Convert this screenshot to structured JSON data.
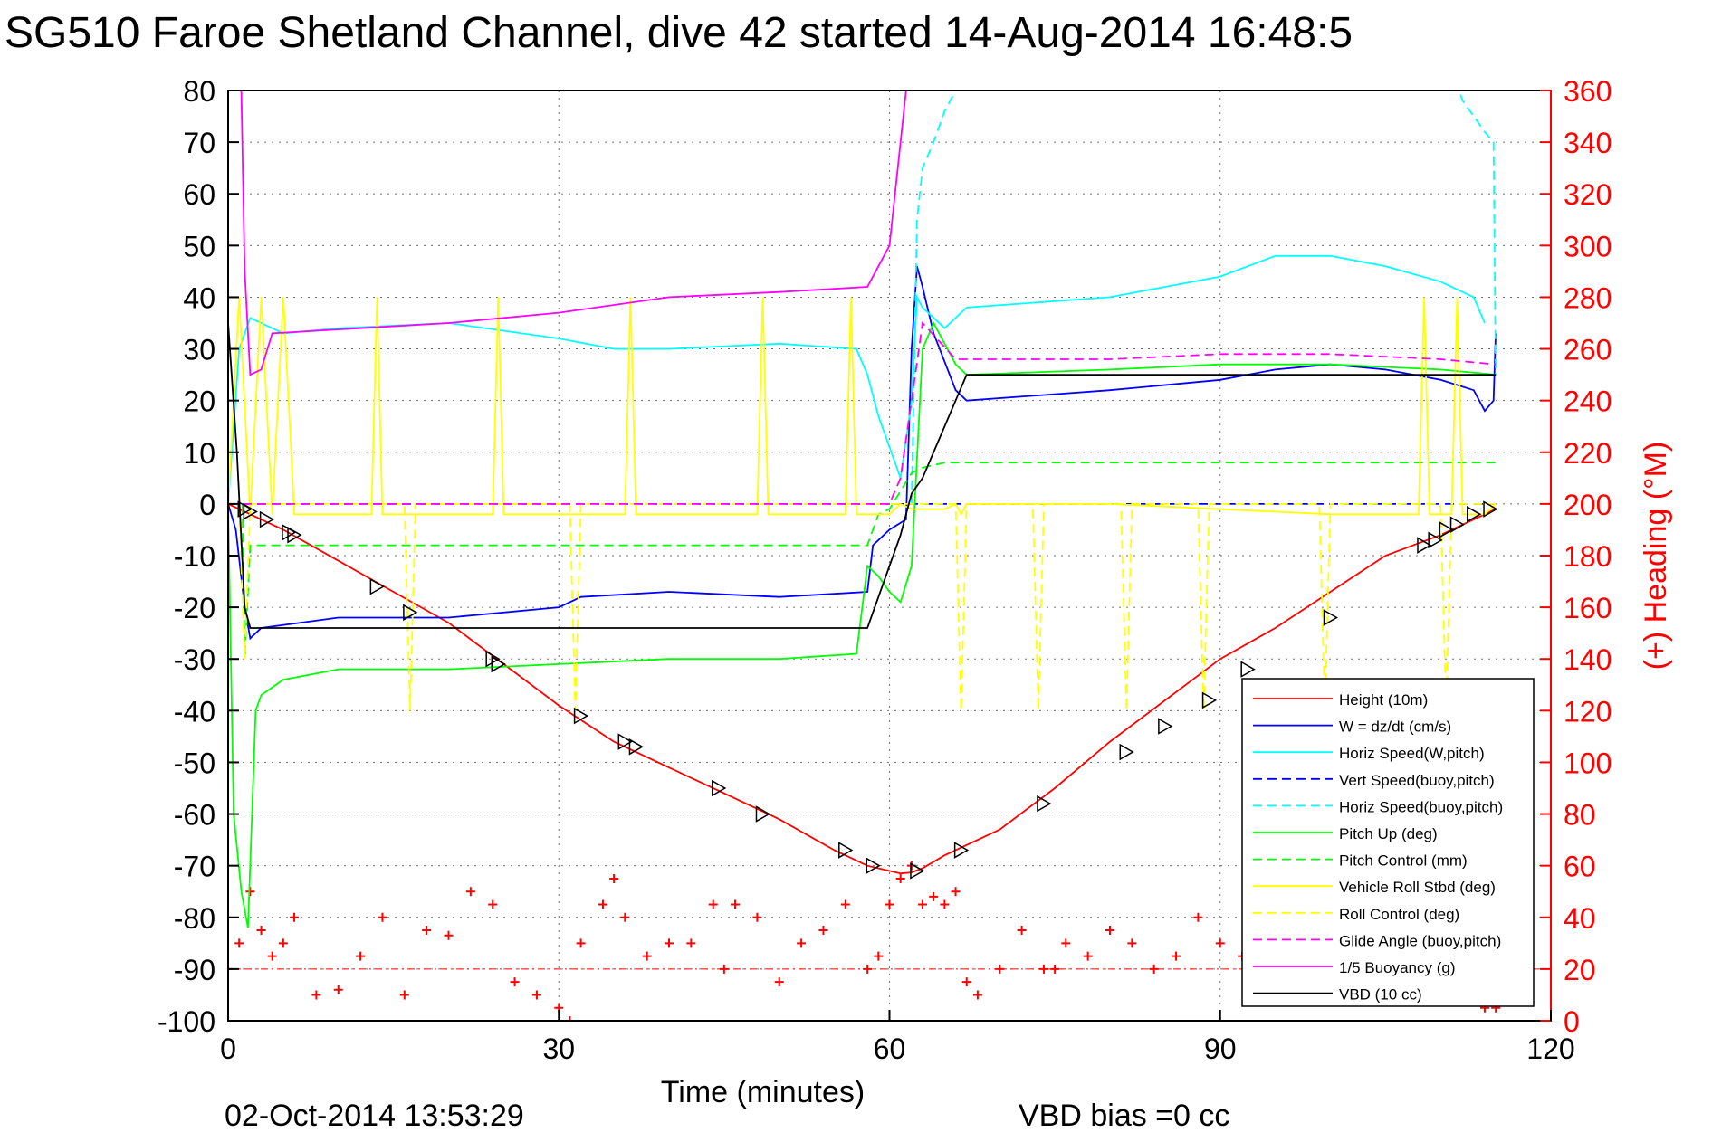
{
  "title": "SG510 Faroe Shetland Channel, dive 42 started 14-Aug-2014 16:48:5",
  "footer_date": "02-Oct-2014 13:53:29",
  "vbd_bias": "VBD bias =0 cc",
  "colors": {
    "height": "#ff0000",
    "w": "#0000ff",
    "horiz": "#00ffff",
    "vert_buoy": "#0000ff",
    "horiz_buoy": "#00ffff",
    "pitch": "#00ff00",
    "pitch_ctrl": "#00ff00",
    "roll": "#ffff00",
    "roll_ctrl": "#ffff00",
    "glide": "#ff00ff",
    "buoy": "#ff00ff",
    "vbd": "#000000",
    "heading": "#ff0000",
    "marker": "#000000"
  },
  "chart_data": {
    "type": "line",
    "xlabel": "Time (minutes)",
    "ylabel_right": "(+) Heading (°M)",
    "xlim": [
      0,
      120
    ],
    "ylim": [
      -100,
      80
    ],
    "y2lim": [
      0,
      360
    ],
    "xticks": [
      "0",
      "30",
      "60",
      "90",
      "120"
    ],
    "yticks": [
      "80",
      "70",
      "60",
      "50",
      "40",
      "30",
      "20",
      "10",
      "0",
      "-10",
      "-20",
      "-30",
      "-40",
      "-50",
      "-60",
      "-70",
      "-80",
      "-90",
      "-100"
    ],
    "y2ticks": [
      "360",
      "340",
      "320",
      "300",
      "280",
      "260",
      "240",
      "220",
      "200",
      "180",
      "160",
      "140",
      "120",
      "100",
      "80",
      "60",
      "40",
      "20",
      "0"
    ],
    "grid": true,
    "legend_position": "bottom-right",
    "legend": [
      {
        "label": "Height (10m)",
        "color": "#ff0000",
        "dash": "solid"
      },
      {
        "label": "W = dz/dt (cm/s)",
        "color": "#0000ff",
        "dash": "solid"
      },
      {
        "label": "Horiz Speed(W,pitch)",
        "color": "#00ffff",
        "dash": "solid"
      },
      {
        "label": "Vert Speed(buoy,pitch)",
        "color": "#0000ff",
        "dash": "dashed"
      },
      {
        "label": "Horiz Speed(buoy,pitch)",
        "color": "#00ffff",
        "dash": "dashed"
      },
      {
        "label": "Pitch Up (deg)",
        "color": "#00ff00",
        "dash": "solid"
      },
      {
        "label": "Pitch Control (mm)",
        "color": "#00ff00",
        "dash": "dashed"
      },
      {
        "label": "Vehicle Roll Stbd (deg)",
        "color": "#ffff00",
        "dash": "solid"
      },
      {
        "label": "Roll Control (deg)",
        "color": "#ffff00",
        "dash": "dashed"
      },
      {
        "label": "Glide Angle (buoy,pitch)",
        "color": "#ff00ff",
        "dash": "dashed"
      },
      {
        "label": "1/5 Buoyancy (g)",
        "color": "#ff00ff",
        "dash": "solid"
      },
      {
        "label": "VBD (10 cc)",
        "color": "#000000",
        "dash": "solid"
      }
    ],
    "series": [
      {
        "name": "Height (10m)",
        "color": "#ff0000",
        "dash": "solid",
        "x": [
          0,
          2,
          5,
          10,
          15,
          20,
          25,
          30,
          35,
          40,
          45,
          50,
          55,
          58,
          60,
          61,
          62,
          63,
          65,
          70,
          75,
          80,
          85,
          90,
          95,
          100,
          105,
          110,
          115
        ],
        "y": [
          0,
          -2,
          -5,
          -11,
          -17,
          -23,
          -31,
          -39,
          -46,
          -51,
          -56,
          -61,
          -67,
          -70,
          -71,
          -71.5,
          -71.3,
          -70.5,
          -68,
          -63,
          -55,
          -46,
          -38,
          -30,
          -24,
          -17,
          -10,
          -6,
          -1
        ]
      },
      {
        "name": "W = dz/dt (cm/s)",
        "color": "#0000ff",
        "dash": "solid",
        "x": [
          0,
          0.7,
          1.5,
          2,
          3,
          10,
          20,
          30,
          32,
          40,
          50,
          58,
          58.5,
          60,
          61.5,
          62,
          62.5,
          63,
          64,
          66,
          67,
          80,
          90,
          95,
          100,
          105,
          110,
          113,
          114,
          114.8,
          115
        ],
        "y": [
          0,
          -5,
          -20,
          -26,
          -24,
          -22,
          -22,
          -20,
          -18,
          -17,
          -18,
          -17,
          -8,
          -5,
          -3,
          30,
          46,
          42,
          33,
          22,
          20,
          22,
          24,
          26,
          27,
          26,
          24,
          22,
          18,
          20,
          33
        ]
      },
      {
        "name": "Horiz Speed(W,pitch)",
        "color": "#00ffff",
        "dash": "solid",
        "x": [
          0,
          1,
          2,
          5,
          10,
          20,
          30,
          35,
          40,
          50,
          57,
          58,
          59,
          61,
          62,
          62.5,
          63,
          65,
          67,
          80,
          90,
          95,
          100,
          105,
          110,
          113,
          114
        ],
        "y": [
          0,
          30,
          36,
          33,
          34,
          35,
          32,
          30,
          30,
          31,
          30,
          25,
          17,
          5,
          20,
          40,
          38,
          34,
          38,
          40,
          44,
          48,
          48,
          46,
          43,
          40,
          35
        ]
      },
      {
        "name": "Vert Speed(buoy,pitch)",
        "color": "#0000ff",
        "dash": "dashed",
        "x": [
          0,
          2,
          10,
          30,
          59,
          61,
          62.3,
          63,
          70,
          90,
          115
        ],
        "y": [
          0,
          0,
          0,
          0,
          0,
          0,
          0,
          0,
          0,
          0,
          0
        ]
      },
      {
        "name": "Horiz Speed(buoy,pitch)",
        "color": "#00ffff",
        "dash": "dashed",
        "x": [
          62,
          62.5,
          63,
          64,
          65,
          66,
          67,
          68,
          110,
          112,
          114,
          114.8,
          115
        ],
        "y": [
          0,
          55,
          65,
          70,
          76,
          80,
          84,
          90,
          90,
          78,
          72,
          70,
          25
        ]
      },
      {
        "name": "Pitch Up (deg)",
        "color": "#00ff00",
        "dash": "solid",
        "x": [
          0,
          0.5,
          1.2,
          1.8,
          2.5,
          3,
          5,
          10,
          20,
          30,
          40,
          50,
          57,
          58,
          59,
          60,
          61,
          62,
          63,
          64,
          66,
          67,
          80,
          90,
          100,
          110,
          115
        ],
        "y": [
          0,
          -60,
          -75,
          -82,
          -40,
          -37,
          -34,
          -32,
          -32,
          -31,
          -30,
          -30,
          -29,
          -12,
          -14,
          -17,
          -19,
          -12,
          30,
          35,
          27,
          25,
          26,
          27,
          27,
          26,
          25
        ]
      },
      {
        "name": "Pitch Control (mm)",
        "color": "#00ff00",
        "dash": "dashed",
        "x": [
          0,
          1.3,
          1.5,
          2,
          10,
          30,
          50,
          58,
          59,
          60,
          62,
          63,
          65,
          67,
          80,
          100,
          115
        ],
        "y": [
          0,
          0,
          -30,
          -8,
          -8,
          -8,
          -8,
          -8,
          -2,
          -1,
          6,
          7,
          8,
          8,
          8,
          8,
          8
        ]
      },
      {
        "name": "Vehicle Roll Stbd (deg)",
        "color": "#ffff00",
        "dash": "solid",
        "x": [
          0,
          1,
          2,
          3,
          4,
          5,
          6,
          13,
          13.5,
          14,
          24,
          24.5,
          25,
          36,
          36.5,
          37,
          48,
          48.5,
          49,
          56,
          56.5,
          57,
          60,
          61,
          62,
          65,
          66,
          66.5,
          67,
          80,
          100,
          108,
          108.5,
          109,
          111,
          111.5,
          112,
          114,
          115
        ],
        "y": [
          0,
          40,
          -2,
          40,
          -2,
          40,
          -2,
          -2,
          40,
          -2,
          -2,
          40,
          -2,
          -2,
          40,
          -2,
          -2,
          40,
          -2,
          -2,
          40,
          -2,
          -2,
          0,
          -1,
          -1,
          0,
          -2,
          0,
          0,
          -2,
          -2,
          40,
          -2,
          -2,
          40,
          -2,
          -2,
          0
        ]
      },
      {
        "name": "Roll Control (deg)",
        "color": "#ffff00",
        "dash": "dashed",
        "x": [
          0,
          1,
          1.5,
          2,
          16,
          16.5,
          17,
          31,
          31.5,
          32,
          60,
          66,
          66.5,
          67,
          73,
          73.5,
          74,
          81,
          81.5,
          82,
          88,
          88.5,
          89,
          99,
          99.5,
          100,
          110,
          110.5,
          111,
          115
        ],
        "y": [
          0,
          0,
          -30,
          0,
          0,
          -40,
          0,
          0,
          -40,
          0,
          0,
          0,
          -40,
          0,
          0,
          -40,
          0,
          0,
          -40,
          0,
          0,
          -40,
          0,
          0,
          -40,
          0,
          0,
          -40,
          0,
          0
        ]
      },
      {
        "name": "Glide Angle (buoy,pitch)",
        "color": "#ff00ff",
        "dash": "dashed",
        "x": [
          0,
          60,
          61,
          62,
          63,
          66,
          80,
          90,
          100,
          110,
          115
        ],
        "y": [
          0,
          0,
          5,
          20,
          35,
          28,
          28,
          29,
          29,
          28,
          27
        ]
      },
      {
        "name": "1/5 Buoyancy (g)",
        "color": "#ff00ff",
        "dash": "solid",
        "x": [
          1.2,
          1.5,
          2,
          3,
          4,
          20,
          30,
          40,
          50,
          58,
          60,
          61.5,
          62
        ],
        "y": [
          80,
          45,
          25,
          26,
          33,
          35,
          37,
          40,
          41,
          42,
          50,
          80,
          95
        ]
      },
      {
        "name": "VBD (10 cc)",
        "color": "#000000",
        "dash": "solid",
        "x": [
          0,
          0.8,
          1.5,
          2,
          10,
          30,
          50,
          58,
          59,
          60,
          61,
          62,
          63,
          65,
          67,
          80,
          100,
          115
        ],
        "y": [
          35,
          10,
          -20,
          -24,
          -24,
          -24,
          -24,
          -24,
          -18,
          -12,
          -6,
          2,
          5,
          15,
          25,
          25,
          25,
          25
        ]
      }
    ],
    "markers": {
      "name": "Height (10m) samples",
      "x": [
        1.5,
        2,
        3.5,
        5.5,
        6,
        13.5,
        16.5,
        24,
        24.5,
        32,
        36,
        37,
        44.5,
        48.5,
        56,
        58.5,
        62.5,
        66.5,
        74,
        81.5,
        85,
        89,
        92.5,
        100,
        108.5,
        109.5,
        110.5,
        111.5,
        113,
        114.5
      ],
      "y": [
        -1,
        -1.5,
        -3,
        -5.5,
        -6,
        -16,
        -21,
        -30,
        -31,
        -41,
        -46,
        -47,
        -55,
        -60,
        -67,
        -70,
        -71,
        -67,
        -58,
        -48,
        -43,
        -38,
        -32,
        -22,
        -8,
        -7,
        -5,
        -4,
        -2,
        -1
      ]
    },
    "heading": {
      "name": "(+) Heading (°M)",
      "color": "#ff0000",
      "reference_line": 20,
      "x": [
        0,
        1,
        2,
        3,
        4,
        5,
        6,
        8,
        10,
        12,
        14,
        16,
        18,
        20,
        22,
        24,
        26,
        28,
        30,
        31,
        32,
        34,
        35,
        36,
        38,
        40,
        42,
        44,
        45,
        46,
        48,
        50,
        52,
        54,
        56,
        58,
        59,
        60,
        61,
        62,
        63,
        64,
        65,
        66,
        67,
        68,
        70,
        72,
        74,
        75,
        76,
        78,
        80,
        82,
        84,
        86,
        88,
        90,
        92,
        94,
        96,
        98,
        100,
        102,
        104,
        106,
        108,
        110,
        112,
        114,
        115
      ],
      "y": [
        20,
        30,
        50,
        35,
        25,
        30,
        40,
        10,
        12,
        25,
        40,
        10,
        35,
        33,
        50,
        45,
        15,
        10,
        5,
        0,
        30,
        45,
        55,
        40,
        25,
        30,
        30,
        45,
        20,
        45,
        40,
        15,
        30,
        35,
        45,
        20,
        25,
        45,
        55,
        60,
        45,
        48,
        45,
        50,
        15,
        10,
        20,
        35,
        20,
        20,
        30,
        25,
        35,
        30,
        20,
        25,
        40,
        30,
        25,
        40,
        35,
        30,
        25,
        40,
        30,
        35,
        20,
        15,
        10,
        5,
        5
      ]
    }
  }
}
